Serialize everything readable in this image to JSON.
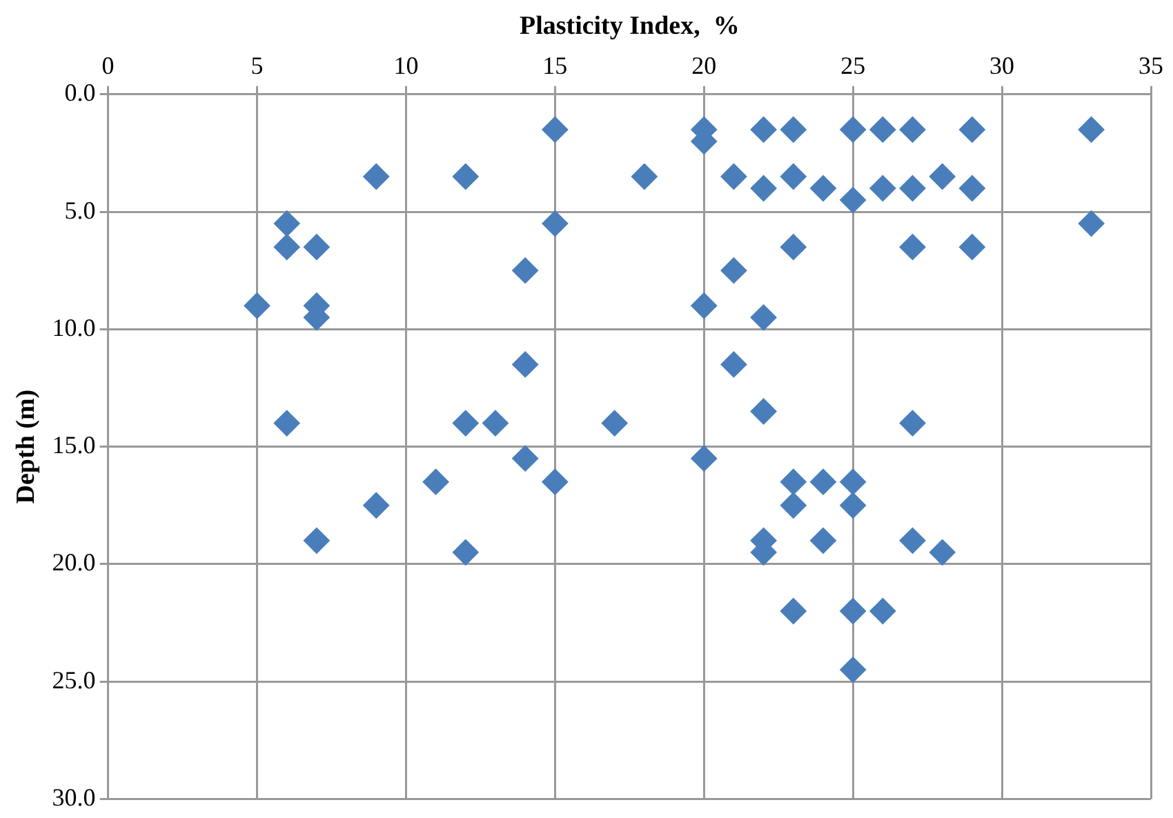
{
  "chart_data": {
    "type": "scatter",
    "xlabel": "Plasticity Index,  %",
    "ylabel": "Depth (m)",
    "x": [
      15,
      20,
      22,
      23,
      25,
      26,
      27,
      29,
      33,
      20,
      9,
      12,
      18,
      21,
      23,
      28,
      22,
      24,
      26,
      27,
      29,
      25,
      6,
      15,
      33,
      6,
      7,
      23,
      27,
      29,
      14,
      21,
      5,
      7,
      20,
      7,
      22,
      14,
      21,
      22,
      6,
      12,
      13,
      17,
      27,
      14,
      20,
      11,
      15,
      23,
      24,
      25,
      9,
      23,
      25,
      7,
      22,
      24,
      27,
      12,
      22,
      28,
      23,
      25,
      26,
      25
    ],
    "values": [
      1.5,
      1.5,
      1.5,
      1.5,
      1.5,
      1.5,
      1.5,
      1.5,
      1.5,
      2,
      3.5,
      3.5,
      3.5,
      3.5,
      3.5,
      3.5,
      4,
      4,
      4,
      4,
      4,
      4.5,
      5.5,
      5.5,
      5.5,
      6.5,
      6.5,
      6.5,
      6.5,
      6.5,
      7.5,
      7.5,
      9,
      9,
      9,
      9.5,
      9.5,
      11.5,
      11.5,
      13.5,
      14,
      14,
      14,
      14,
      14,
      15.5,
      15.5,
      16.5,
      16.5,
      16.5,
      16.5,
      16.5,
      17.5,
      17.5,
      17.5,
      19,
      19,
      19,
      19,
      19.5,
      19.5,
      19.5,
      22,
      22,
      22,
      24.5
    ],
    "color": "#4a7ebb",
    "marker": "diamond",
    "grid": true,
    "xlim": [
      0,
      35
    ],
    "xticks": [
      0,
      5,
      10,
      15,
      20,
      25,
      30,
      35
    ],
    "ylim": [
      30,
      0
    ],
    "yticks": [
      {
        "value": 0,
        "label": "0.0"
      },
      {
        "value": 5,
        "label": "5.0"
      },
      {
        "value": 10,
        "label": "10.0"
      },
      {
        "value": 15,
        "label": "15.0"
      },
      {
        "value": 20,
        "label": "20.0"
      },
      {
        "value": 25,
        "label": "25.0"
      },
      {
        "value": 30,
        "label": "30.0"
      }
    ]
  }
}
